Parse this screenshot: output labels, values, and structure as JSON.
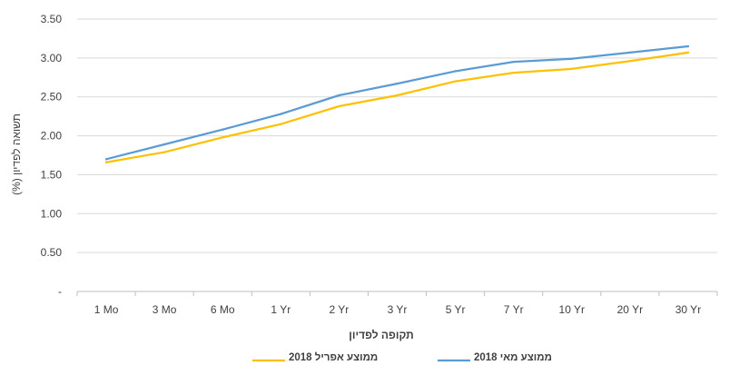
{
  "chart_data": {
    "type": "line",
    "title": "",
    "xlabel": "תקופה לפדיון",
    "ylabel": "תשואה לפדיון (%)",
    "categories": [
      "1 Mo",
      "3 Mo",
      "6 Mo",
      "1 Yr",
      "2 Yr",
      "3 Yr",
      "5 Yr",
      "7 Yr",
      "10 Yr",
      "20 Yr",
      "30 Yr"
    ],
    "yticks": [
      "-",
      "0.50",
      "1.00",
      "1.50",
      "2.00",
      "2.50",
      "3.00",
      "3.50"
    ],
    "ytick_values": [
      0,
      0.5,
      1.0,
      1.5,
      2.0,
      2.5,
      3.0,
      3.5
    ],
    "ylim": [
      0,
      3.5
    ],
    "grid": "horizontal",
    "legend_position": "bottom",
    "series": [
      {
        "name": "ממוצע אפריל 2018",
        "color": "#FFC000",
        "values": [
          1.66,
          1.79,
          1.98,
          2.15,
          2.38,
          2.52,
          2.7,
          2.81,
          2.86,
          2.96,
          3.07
        ]
      },
      {
        "name": "ממוצע מאי 2018",
        "color": "#5B9BD5",
        "values": [
          1.7,
          1.89,
          2.08,
          2.28,
          2.52,
          2.67,
          2.83,
          2.95,
          2.99,
          3.07,
          3.15
        ]
      }
    ]
  }
}
